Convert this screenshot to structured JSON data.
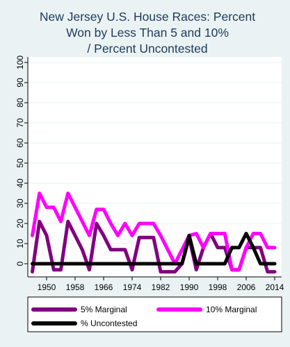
{
  "chart_data": {
    "type": "line",
    "title_lines": [
      "New Jersey U.S. House Races: Percent",
      "Won by Less Than 5 and 10%",
      "/ Percent Uncontested"
    ],
    "xlabel": "",
    "ylabel": "",
    "xlim": [
      1946,
      2014
    ],
    "ylim": [
      0,
      100
    ],
    "x_ticks": [
      1950,
      1958,
      1966,
      1974,
      1982,
      1990,
      1998,
      2006,
      2014
    ],
    "y_ticks": [
      0,
      10,
      20,
      30,
      40,
      50,
      60,
      70,
      80,
      90,
      100
    ],
    "x": [
      1946,
      1948,
      1950,
      1952,
      1954,
      1956,
      1958,
      1960,
      1962,
      1964,
      1966,
      1968,
      1970,
      1972,
      1974,
      1976,
      1978,
      1980,
      1982,
      1984,
      1986,
      1988,
      1990,
      1992,
      1994,
      1996,
      1998,
      2000,
      2002,
      2004,
      2006,
      2008,
      2010,
      2012,
      2014
    ],
    "series": [
      {
        "name": "5% Marginal",
        "color": "#800080",
        "values": [
          -4,
          21,
          14,
          -3,
          -3,
          21,
          14,
          7,
          -3,
          20,
          14,
          7,
          7,
          7,
          -3,
          13,
          13,
          13,
          -4,
          -4,
          -4,
          0,
          13,
          -3,
          8,
          15,
          8,
          8,
          -3,
          -3,
          8,
          8,
          8,
          -4,
          -4
        ]
      },
      {
        "name": "10% Marginal",
        "color": "#ff00ff",
        "values": [
          14,
          35,
          28,
          28,
          21,
          35,
          28,
          21,
          14,
          27,
          27,
          20,
          14,
          20,
          14,
          20,
          20,
          20,
          14,
          7,
          0,
          7,
          14,
          15,
          8,
          15,
          15,
          15,
          -3,
          -3,
          8,
          15,
          15,
          8,
          8
        ]
      },
      {
        "name": "% Uncontested",
        "color": "#000000",
        "values": [
          0,
          0,
          0,
          0,
          0,
          0,
          0,
          0,
          0,
          0,
          0,
          0,
          0,
          0,
          0,
          0,
          0,
          0,
          0,
          0,
          0,
          0,
          14,
          0,
          0,
          0,
          0,
          0,
          8,
          8,
          15,
          8,
          0,
          0,
          0
        ]
      }
    ],
    "legend_position": "bottom",
    "grid": "horizontal"
  }
}
